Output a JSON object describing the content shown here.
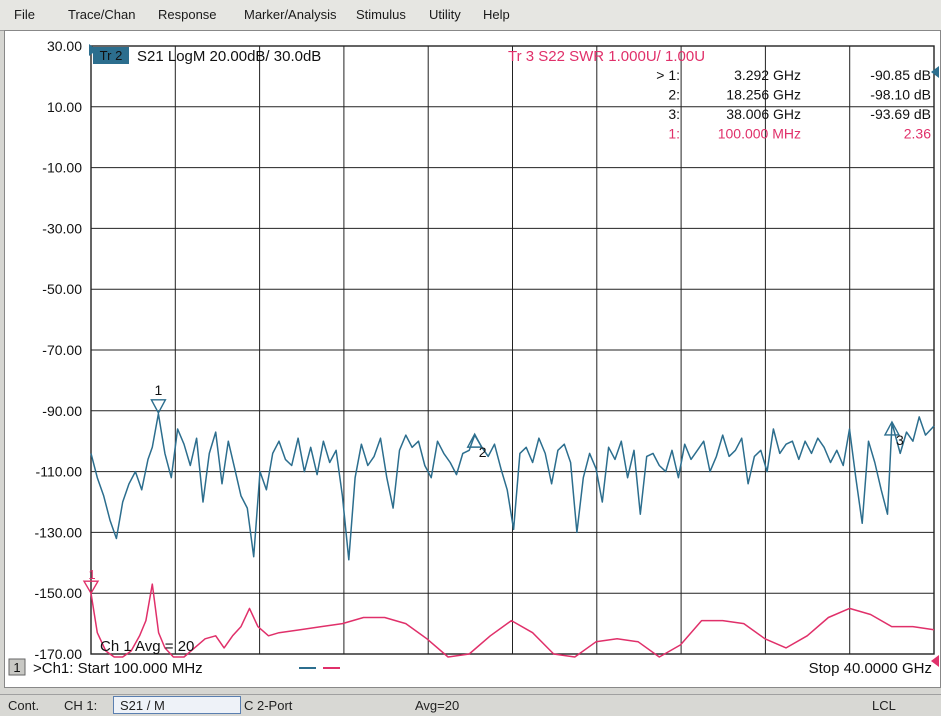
{
  "menu": [
    "File",
    "Trace/Chan",
    "Response",
    "Marker/Analysis",
    "Stimulus",
    "Utility",
    "Help"
  ],
  "trace2": {
    "badge": "Tr 2",
    "label": "S21 LogM 20.00dB/ 30.0dB",
    "color": "#2c6e8e"
  },
  "trace3": {
    "label": "Tr 3  S22 SWR 1.000U/ 1.00U",
    "color": "#e0306a"
  },
  "markers": [
    {
      "id": "> 1:",
      "freq": "3.292 GHz",
      "value": "-90.85 dB",
      "trace": "tr2"
    },
    {
      "id": "2:",
      "freq": "18.256 GHz",
      "value": "-98.10 dB",
      "trace": "tr2"
    },
    {
      "id": "3:",
      "freq": "38.006 GHz",
      "value": "-93.69 dB",
      "trace": "tr2"
    },
    {
      "id": "1:",
      "freq": "100.000 MHz",
      "value": "2.36",
      "trace": "tr3"
    }
  ],
  "y_labels": [
    "30.00",
    "10.00",
    "-10.00",
    "-30.00",
    "-50.00",
    "-70.00",
    "-90.00",
    "-110.00",
    "-130.00",
    "-150.00",
    "-170.00"
  ],
  "averaging": "Ch 1 Avg =    20",
  "channel_number": "1",
  "start_label": ">Ch1: Start  100.000 MHz",
  "stop_label": "Stop  40.0000 GHz",
  "marker_labels": {
    "m1": "1",
    "m2": "2",
    "m3": "3",
    "m_tr3": "1"
  },
  "status": {
    "mode": "Cont.",
    "channel": "CH 1:",
    "trace": "S21 / M",
    "cal": "C  2-Port",
    "avg": "Avg=20",
    "remote": "LCL"
  },
  "chart_data": {
    "type": "line",
    "title": "",
    "xlabel": "",
    "ylabel": "",
    "x_range_label": [
      "100.000 MHz",
      "40.0000 GHz"
    ],
    "xlim_ghz": [
      0.1,
      40
    ],
    "ylim": [
      -170,
      30
    ],
    "grid": true,
    "series": [
      {
        "name": "Tr 2 S21 LogM",
        "color": "#2c6e8e",
        "x": [
          0.1,
          0.4,
          0.7,
          1.0,
          1.3,
          1.6,
          1.9,
          2.2,
          2.5,
          2.8,
          3.0,
          3.29,
          3.6,
          3.9,
          4.2,
          4.5,
          4.8,
          5.1,
          5.4,
          5.7,
          6.0,
          6.3,
          6.6,
          6.9,
          7.2,
          7.5,
          7.8,
          8.1,
          8.4,
          8.7,
          9.0,
          9.3,
          9.6,
          9.9,
          10.2,
          10.5,
          10.8,
          11.1,
          11.4,
          11.7,
          12.0,
          12.3,
          12.6,
          12.9,
          13.2,
          13.5,
          13.8,
          14.1,
          14.4,
          14.7,
          15.0,
          15.3,
          15.6,
          15.9,
          16.2,
          16.5,
          16.8,
          17.1,
          17.4,
          17.7,
          18.0,
          18.26,
          18.6,
          18.9,
          19.2,
          19.5,
          19.8,
          20.1,
          20.4,
          20.7,
          21.0,
          21.3,
          21.6,
          21.9,
          22.2,
          22.5,
          22.8,
          23.1,
          23.4,
          23.7,
          24.0,
          24.3,
          24.6,
          24.9,
          25.2,
          25.5,
          25.8,
          26.1,
          26.4,
          26.7,
          27.0,
          27.3,
          27.6,
          27.9,
          28.2,
          28.5,
          28.8,
          29.1,
          29.4,
          29.7,
          30.0,
          30.3,
          30.6,
          30.9,
          31.2,
          31.5,
          31.8,
          32.1,
          32.4,
          32.7,
          33.0,
          33.3,
          33.6,
          33.9,
          34.2,
          34.5,
          34.8,
          35.1,
          35.4,
          35.7,
          36.0,
          36.3,
          36.6,
          36.9,
          37.2,
          37.5,
          37.8,
          38.01,
          38.4,
          38.7,
          39.0,
          39.3,
          39.6,
          40.0
        ],
        "y": [
          -104,
          -112,
          -118,
          -126,
          -132,
          -120,
          -114,
          -110,
          -116,
          -106,
          -102,
          -91,
          -104,
          -112,
          -96,
          -101,
          -108,
          -99,
          -120,
          -104,
          -97,
          -114,
          -100,
          -109,
          -118,
          -122,
          -138,
          -110,
          -116,
          -104,
          -100,
          -106,
          -108,
          -99,
          -110,
          -102,
          -111,
          -100,
          -107,
          -103,
          -118,
          -139,
          -112,
          -101,
          -108,
          -105,
          -99,
          -112,
          -122,
          -103,
          -98,
          -102,
          -100,
          -108,
          -112,
          -100,
          -104,
          -107,
          -111,
          -104,
          -103,
          -98,
          -102,
          -105,
          -101,
          -109,
          -116,
          -129,
          -104,
          -102,
          -107,
          -99,
          -104,
          -114,
          -103,
          -101,
          -107,
          -130,
          -112,
          -104,
          -109,
          -120,
          -102,
          -106,
          -100,
          -112,
          -103,
          -124,
          -105,
          -104,
          -108,
          -110,
          -103,
          -112,
          -101,
          -106,
          -103,
          -100,
          -110,
          -105,
          -98,
          -105,
          -103,
          -99,
          -114,
          -105,
          -103,
          -110,
          -96,
          -104,
          -101,
          -100,
          -106,
          -100,
          -104,
          -99,
          -102,
          -107,
          -103,
          -108,
          -96,
          -112,
          -127,
          -100,
          -107,
          -116,
          -124,
          -94,
          -104,
          -97,
          -100,
          -92,
          -98,
          -95
        ]
      },
      {
        "name": "Tr 3 S22 SWR",
        "color": "#e0306a",
        "x": [
          0.1,
          0.4,
          0.8,
          1.2,
          1.6,
          2.0,
          2.4,
          2.7,
          3.0,
          3.3,
          3.6,
          4.0,
          4.5,
          5.0,
          5.5,
          6.0,
          6.4,
          6.8,
          7.2,
          7.6,
          8.0,
          8.5,
          9.0,
          10.0,
          11.0,
          12.0,
          13.0,
          14.0,
          15.0,
          16.0,
          17.0,
          18.0,
          19.0,
          20.0,
          21.0,
          22.0,
          23.0,
          24.0,
          25.0,
          26.0,
          27.0,
          28.0,
          29.0,
          30.0,
          31.0,
          32.0,
          33.0,
          34.0,
          35.0,
          36.0,
          37.0,
          38.0,
          39.0,
          40.0
        ],
        "y": [
          -150,
          -163,
          -169,
          -171,
          -171,
          -169,
          -164,
          -159,
          -147,
          -163,
          -168,
          -171,
          -171,
          -168,
          -165,
          -164,
          -168,
          -164,
          -161,
          -155,
          -161,
          -164,
          -163,
          -162,
          -161,
          -160,
          -158,
          -158,
          -160,
          -165,
          -171,
          -170,
          -164,
          -159,
          -163,
          -170,
          -171,
          -166,
          -165,
          -166,
          -171,
          -167,
          -159,
          -159,
          -160,
          -165,
          -168,
          -164,
          -158,
          -155,
          -157,
          -161,
          -161,
          -162
        ]
      }
    ]
  }
}
